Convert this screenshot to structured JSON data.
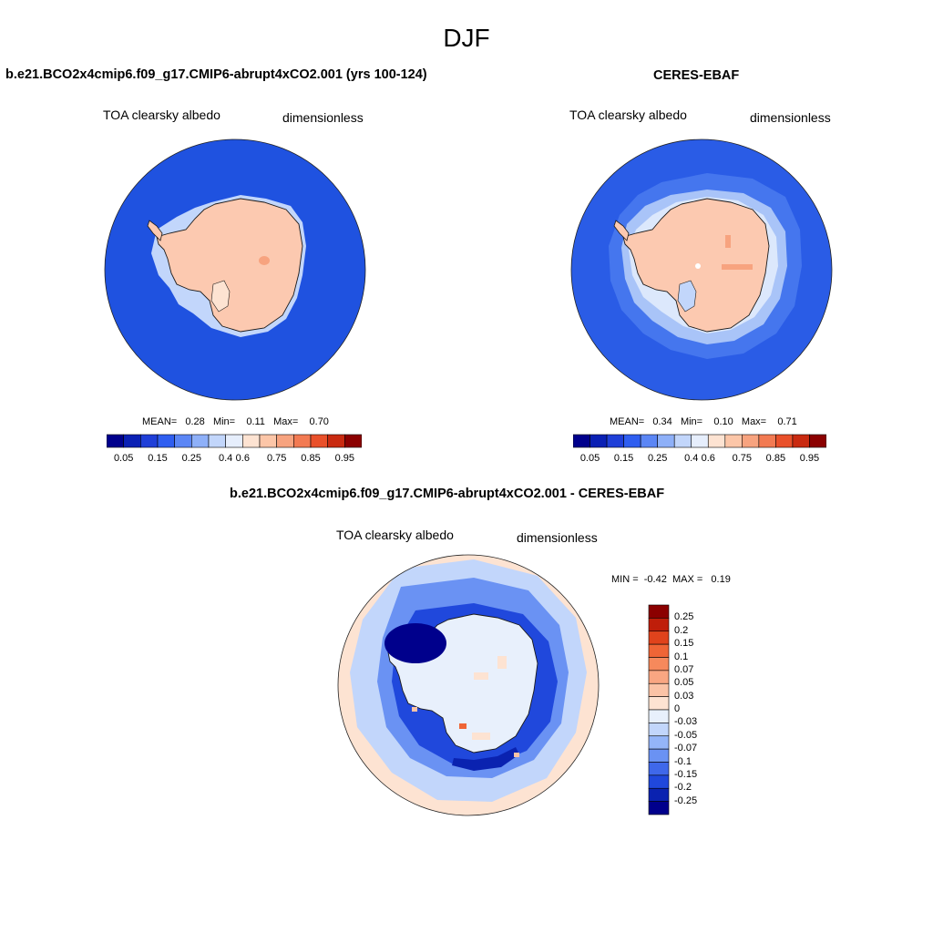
{
  "figure": {
    "season": "DJF"
  },
  "panels": [
    {
      "title": "b.e21.BCO2x4cmip6.f09_g17.CMIP6-abrupt4xCO2.001 (yrs 100-124)",
      "variable": "TOA clearsky albedo",
      "units": "dimensionless",
      "stats": "MEAN=   0.28   Min=    0.11   Max=    0.70",
      "ocean_color": "#1f52e0"
    },
    {
      "title": "CERES-EBAF",
      "variable": "TOA clearsky albedo",
      "units": "dimensionless",
      "stats": "MEAN=   0.34   Min=    0.10   Max=    0.71",
      "ocean_color": "#2a5ce6"
    }
  ],
  "diff_panel": {
    "title": "b.e21.BCO2x4cmip6.f09_g17.CMIP6-abrupt4xCO2.001 - CERES-EBAF",
    "variable": "TOA clearsky albedo",
    "units": "dimensionless",
    "stats": "MIN =  -0.42  MAX =   0.19"
  },
  "colorbar_main": {
    "colors": [
      "#00008c",
      "#0a20b4",
      "#1f3fd8",
      "#2f5ef0",
      "#5b86f5",
      "#8eb0f8",
      "#c2d6fb",
      "#e6eefc",
      "#fde3d2",
      "#fcc6a8",
      "#f7a37f",
      "#f27a52",
      "#e9502a",
      "#c92a10",
      "#8b0000"
    ],
    "ticks": [
      "0.05",
      "0.15",
      "0.25",
      "0.4",
      "0.6",
      "0.75",
      "0.85",
      "0.95"
    ]
  },
  "colorbar_diff": {
    "colors_top_to_bottom": [
      "#8b0000",
      "#bf1e0a",
      "#e0431c",
      "#ef6536",
      "#f6895c",
      "#f9a682",
      "#fbc3a6",
      "#fde3d2",
      "#e8f0fc",
      "#c2d6fb",
      "#94b5f8",
      "#6a92f3",
      "#3f68ea",
      "#2048dc",
      "#0a22b0",
      "#00008c"
    ],
    "ticks_top_to_bottom": [
      "0.25",
      "0.2",
      "0.15",
      "0.1",
      "0.07",
      "0.05",
      "0.03",
      "0",
      "-0.03",
      "-0.05",
      "-0.07",
      "-0.1",
      "-0.15",
      "-0.2",
      "-0.25"
    ]
  },
  "colors": {
    "land_albedo": "#fcc9b0",
    "sea_ice_model": "#c2d6fb",
    "sea_ice_obs": "#a9c4f8",
    "diff_background": "#fde3d2",
    "diff_inner": "#e8f0fc",
    "diff_ring": "#2048dc",
    "diff_deep": "#00008c"
  }
}
